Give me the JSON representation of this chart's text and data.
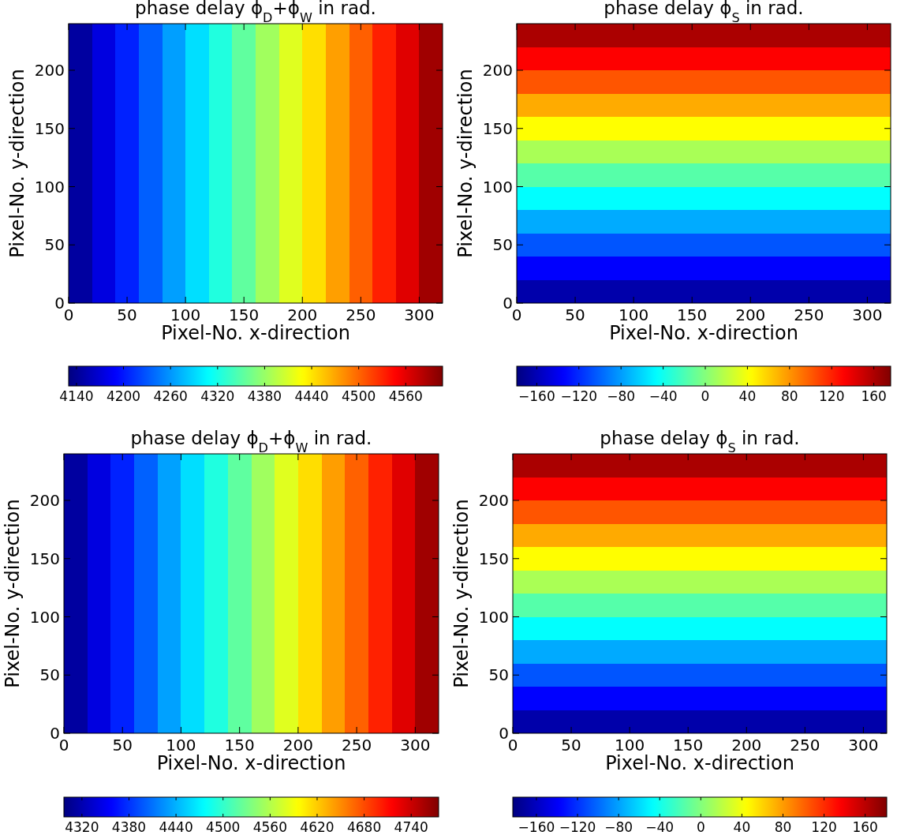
{
  "chart_data": [
    {
      "type": "heatmap",
      "title": "phase delay ϕ$_{D}$+ϕ$_{W}$ in rad.",
      "xlabel": "Pixel-No. x-direction",
      "ylabel": "Pixel-No. y-direction",
      "xlim": [
        0,
        320
      ],
      "xticks": [
        0,
        50,
        100,
        150,
        200,
        250,
        300
      ],
      "ylim": [
        0,
        240
      ],
      "yticks": [
        0,
        50,
        100,
        150,
        200
      ],
      "clim": [
        4130,
        4607
      ],
      "cticks": [
        4140,
        4200,
        4260,
        4320,
        4380,
        4440,
        4500,
        4560
      ],
      "x": [
        10,
        30,
        50,
        70,
        90,
        110,
        130,
        150,
        170,
        190,
        210,
        230,
        250,
        270,
        290,
        310
      ],
      "y": [
        230,
        210,
        190,
        170,
        150,
        130,
        110,
        90,
        70,
        50,
        30,
        10
      ],
      "cells": [
        [
          4145,
          4175,
          4205,
          4234,
          4264,
          4294,
          4324,
          4354,
          4384,
          4413,
          4443,
          4473,
          4503,
          4533,
          4562,
          4592
        ],
        [
          4145,
          4175,
          4205,
          4234,
          4264,
          4294,
          4324,
          4354,
          4384,
          4413,
          4443,
          4473,
          4503,
          4533,
          4562,
          4592
        ],
        [
          4145,
          4175,
          4205,
          4234,
          4264,
          4294,
          4324,
          4354,
          4384,
          4413,
          4443,
          4473,
          4503,
          4533,
          4562,
          4592
        ],
        [
          4145,
          4175,
          4205,
          4234,
          4264,
          4294,
          4324,
          4354,
          4384,
          4413,
          4443,
          4473,
          4503,
          4533,
          4562,
          4592
        ],
        [
          4145,
          4175,
          4205,
          4234,
          4264,
          4294,
          4324,
          4354,
          4384,
          4413,
          4443,
          4473,
          4503,
          4533,
          4562,
          4592
        ],
        [
          4145,
          4175,
          4205,
          4234,
          4264,
          4294,
          4324,
          4354,
          4384,
          4413,
          4443,
          4473,
          4503,
          4533,
          4562,
          4592
        ],
        [
          4145,
          4175,
          4205,
          4234,
          4264,
          4294,
          4324,
          4354,
          4384,
          4413,
          4443,
          4473,
          4503,
          4533,
          4562,
          4592
        ],
        [
          4145,
          4175,
          4205,
          4234,
          4264,
          4294,
          4324,
          4354,
          4384,
          4413,
          4443,
          4473,
          4503,
          4533,
          4562,
          4592
        ],
        [
          4145,
          4175,
          4205,
          4234,
          4264,
          4294,
          4324,
          4354,
          4384,
          4413,
          4443,
          4473,
          4503,
          4533,
          4562,
          4592
        ],
        [
          4145,
          4175,
          4205,
          4234,
          4264,
          4294,
          4324,
          4354,
          4384,
          4413,
          4443,
          4473,
          4503,
          4533,
          4562,
          4592
        ],
        [
          4145,
          4175,
          4205,
          4234,
          4264,
          4294,
          4324,
          4354,
          4384,
          4413,
          4443,
          4473,
          4503,
          4533,
          4562,
          4592
        ],
        [
          4145,
          4175,
          4205,
          4234,
          4264,
          4294,
          4324,
          4354,
          4384,
          4413,
          4443,
          4473,
          4503,
          4533,
          4562,
          4592
        ]
      ]
    },
    {
      "type": "heatmap",
      "title": "phase delay ϕ$_{S}$ in rad.",
      "xlabel": "Pixel-No. x-direction",
      "ylabel": "Pixel-No. y-direction",
      "xlim": [
        0,
        320
      ],
      "xticks": [
        0,
        50,
        100,
        150,
        200,
        250,
        300
      ],
      "ylim": [
        0,
        240
      ],
      "yticks": [
        0,
        50,
        100,
        150,
        200
      ],
      "clim": [
        -179,
        176
      ],
      "cticks": [
        -160,
        -120,
        -80,
        -40,
        0,
        40,
        80,
        120,
        160
      ],
      "x": [
        10,
        30,
        50,
        70,
        90,
        110,
        130,
        150,
        170,
        190,
        210,
        230,
        250,
        270,
        290,
        310
      ],
      "y": [
        230,
        210,
        190,
        170,
        150,
        130,
        110,
        90,
        70,
        50,
        30,
        10
      ],
      "cells": [
        [
          161,
          161,
          161,
          161,
          161,
          161,
          161,
          161,
          161,
          161,
          161,
          161,
          161,
          161,
          161,
          161
        ],
        [
          132,
          132,
          132,
          132,
          132,
          132,
          132,
          132,
          132,
          132,
          132,
          132,
          132,
          132,
          132,
          132
        ],
        [
          102,
          102,
          102,
          102,
          102,
          102,
          102,
          102,
          102,
          102,
          102,
          102,
          102,
          102,
          102,
          102
        ],
        [
          72,
          72,
          72,
          72,
          72,
          72,
          72,
          72,
          72,
          72,
          72,
          72,
          72,
          72,
          72,
          72
        ],
        [
          43,
          43,
          43,
          43,
          43,
          43,
          43,
          43,
          43,
          43,
          43,
          43,
          43,
          43,
          43,
          43
        ],
        [
          13,
          13,
          13,
          13,
          13,
          13,
          13,
          13,
          13,
          13,
          13,
          13,
          13,
          13,
          13,
          13
        ],
        [
          -16,
          -16,
          -16,
          -16,
          -16,
          -16,
          -16,
          -16,
          -16,
          -16,
          -16,
          -16,
          -16,
          -16,
          -16,
          -16
        ],
        [
          -46,
          -46,
          -46,
          -46,
          -46,
          -46,
          -46,
          -46,
          -46,
          -46,
          -46,
          -46,
          -46,
          -46,
          -46,
          -46
        ],
        [
          -75,
          -75,
          -75,
          -75,
          -75,
          -75,
          -75,
          -75,
          -75,
          -75,
          -75,
          -75,
          -75,
          -75,
          -75,
          -75
        ],
        [
          -105,
          -105,
          -105,
          -105,
          -105,
          -105,
          -105,
          -105,
          -105,
          -105,
          -105,
          -105,
          -105,
          -105,
          -105,
          -105
        ],
        [
          -135,
          -135,
          -135,
          -135,
          -135,
          -135,
          -135,
          -135,
          -135,
          -135,
          -135,
          -135,
          -135,
          -135,
          -135,
          -135
        ],
        [
          -164,
          -164,
          -164,
          -164,
          -164,
          -164,
          -164,
          -164,
          -164,
          -164,
          -164,
          -164,
          -164,
          -164,
          -164,
          -164
        ]
      ]
    },
    {
      "type": "heatmap",
      "title": "phase delay ϕ$_{D}$+ϕ$_{W}$ in rad.",
      "xlabel": "Pixel-No. x-direction",
      "ylabel": "Pixel-No. y-direction",
      "xlim": [
        0,
        320
      ],
      "xticks": [
        0,
        50,
        100,
        150,
        200,
        250,
        300
      ],
      "ylim": [
        0,
        240
      ],
      "yticks": [
        0,
        50,
        100,
        150,
        200
      ],
      "clim": [
        4297,
        4775
      ],
      "cticks": [
        4320,
        4380,
        4440,
        4500,
        4560,
        4620,
        4680,
        4740
      ],
      "x": [
        10,
        30,
        50,
        70,
        90,
        110,
        130,
        150,
        170,
        190,
        210,
        230,
        250,
        270,
        290,
        310
      ],
      "y": [
        230,
        210,
        190,
        170,
        150,
        130,
        110,
        90,
        70,
        50,
        30,
        10
      ],
      "cells": [
        [
          4312,
          4342,
          4372,
          4402,
          4432,
          4461,
          4491,
          4521,
          4551,
          4581,
          4611,
          4641,
          4670,
          4700,
          4730,
          4760
        ],
        [
          4312,
          4342,
          4372,
          4402,
          4432,
          4461,
          4491,
          4521,
          4551,
          4581,
          4611,
          4641,
          4670,
          4700,
          4730,
          4760
        ],
        [
          4312,
          4342,
          4372,
          4402,
          4432,
          4461,
          4491,
          4521,
          4551,
          4581,
          4611,
          4641,
          4670,
          4700,
          4730,
          4760
        ],
        [
          4312,
          4342,
          4372,
          4402,
          4432,
          4461,
          4491,
          4521,
          4551,
          4581,
          4611,
          4641,
          4670,
          4700,
          4730,
          4760
        ],
        [
          4312,
          4342,
          4372,
          4402,
          4432,
          4461,
          4491,
          4521,
          4551,
          4581,
          4611,
          4641,
          4670,
          4700,
          4730,
          4760
        ],
        [
          4312,
          4342,
          4372,
          4402,
          4432,
          4461,
          4491,
          4521,
          4551,
          4581,
          4611,
          4641,
          4670,
          4700,
          4730,
          4760
        ],
        [
          4312,
          4342,
          4372,
          4402,
          4432,
          4461,
          4491,
          4521,
          4551,
          4581,
          4611,
          4641,
          4670,
          4700,
          4730,
          4760
        ],
        [
          4312,
          4342,
          4372,
          4402,
          4432,
          4461,
          4491,
          4521,
          4551,
          4581,
          4611,
          4641,
          4670,
          4700,
          4730,
          4760
        ],
        [
          4312,
          4342,
          4372,
          4402,
          4432,
          4461,
          4491,
          4521,
          4551,
          4581,
          4611,
          4641,
          4670,
          4700,
          4730,
          4760
        ],
        [
          4312,
          4342,
          4372,
          4402,
          4432,
          4461,
          4491,
          4521,
          4551,
          4581,
          4611,
          4641,
          4670,
          4700,
          4730,
          4760
        ],
        [
          4312,
          4342,
          4372,
          4402,
          4432,
          4461,
          4491,
          4521,
          4551,
          4581,
          4611,
          4641,
          4670,
          4700,
          4730,
          4760
        ],
        [
          4312,
          4342,
          4372,
          4402,
          4432,
          4461,
          4491,
          4521,
          4551,
          4581,
          4611,
          4641,
          4670,
          4700,
          4730,
          4760
        ]
      ]
    },
    {
      "type": "heatmap",
      "title": "phase delay ϕ$_{S}$ in rad.",
      "xlabel": "Pixel-No. x-direction",
      "ylabel": "Pixel-No. y-direction",
      "xlim": [
        0,
        320
      ],
      "xticks": [
        0,
        50,
        100,
        150,
        200,
        250,
        300
      ],
      "ylim": [
        0,
        240
      ],
      "yticks": [
        0,
        50,
        100,
        150,
        200
      ],
      "clim": [
        -183,
        181
      ],
      "cticks": [
        -160,
        -120,
        -80,
        -40,
        0,
        40,
        80,
        120,
        160
      ],
      "x": [
        10,
        30,
        50,
        70,
        90,
        110,
        130,
        150,
        170,
        190,
        210,
        230,
        250,
        270,
        290,
        310
      ],
      "y": [
        230,
        210,
        190,
        170,
        150,
        130,
        110,
        90,
        70,
        50,
        30,
        10
      ],
      "cells": [
        [
          166,
          166,
          166,
          166,
          166,
          166,
          166,
          166,
          166,
          166,
          166,
          166,
          166,
          166,
          166,
          166
        ],
        [
          136,
          136,
          136,
          136,
          136,
          136,
          136,
          136,
          136,
          136,
          136,
          136,
          136,
          136,
          136,
          136
        ],
        [
          105,
          105,
          105,
          105,
          105,
          105,
          105,
          105,
          105,
          105,
          105,
          105,
          105,
          105,
          105,
          105
        ],
        [
          75,
          75,
          75,
          75,
          75,
          75,
          75,
          75,
          75,
          75,
          75,
          75,
          75,
          75,
          75,
          75
        ],
        [
          45,
          45,
          45,
          45,
          45,
          45,
          45,
          45,
          45,
          45,
          45,
          45,
          45,
          45,
          45,
          45
        ],
        [
          14,
          14,
          14,
          14,
          14,
          14,
          14,
          14,
          14,
          14,
          14,
          14,
          14,
          14,
          14,
          14
        ],
        [
          -16,
          -16,
          -16,
          -16,
          -16,
          -16,
          -16,
          -16,
          -16,
          -16,
          -16,
          -16,
          -16,
          -16,
          -16,
          -16
        ],
        [
          -46,
          -46,
          -46,
          -46,
          -46,
          -46,
          -46,
          -46,
          -46,
          -46,
          -46,
          -46,
          -46,
          -46,
          -46,
          -46
        ],
        [
          -77,
          -77,
          -77,
          -77,
          -77,
          -77,
          -77,
          -77,
          -77,
          -77,
          -77,
          -77,
          -77,
          -77,
          -77,
          -77
        ],
        [
          -107,
          -107,
          -107,
          -107,
          -107,
          -107,
          -107,
          -107,
          -107,
          -107,
          -107,
          -107,
          -107,
          -107,
          -107,
          -107
        ],
        [
          -137,
          -137,
          -137,
          -137,
          -137,
          -137,
          -137,
          -137,
          -137,
          -137,
          -137,
          -137,
          -137,
          -137,
          -137,
          -137
        ],
        [
          -168,
          -168,
          -168,
          -168,
          -168,
          -168,
          -168,
          -168,
          -168,
          -168,
          -168,
          -168,
          -168,
          -168,
          -168,
          -168
        ]
      ]
    }
  ]
}
